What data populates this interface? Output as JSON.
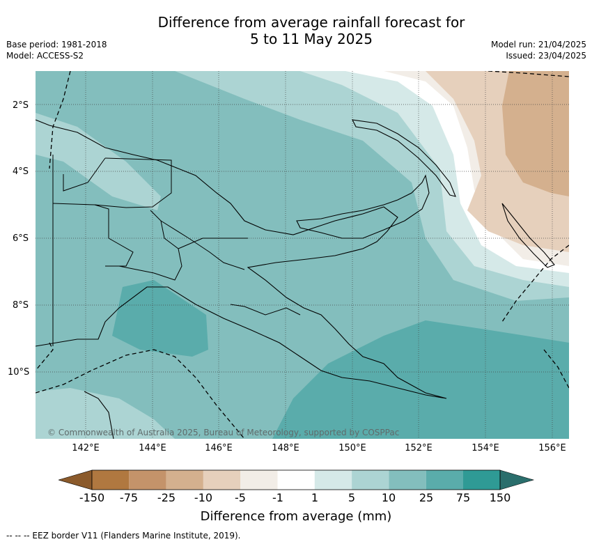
{
  "title": {
    "line1": "Difference from average rainfall forecast for",
    "line2": "5 to 11 May 2025"
  },
  "meta": {
    "base_period": "Base period: 1981-2018",
    "model": "Model: ACCESS-S2",
    "model_run": "Model run: 21/04/2025",
    "issued": "Issued: 23/04/2025"
  },
  "map": {
    "lat_labels": [
      "2°S",
      "4°S",
      "6°S",
      "8°S",
      "10°S"
    ],
    "lon_labels": [
      "142°E",
      "144°E",
      "146°E",
      "148°E",
      "150°E",
      "152°E",
      "154°E",
      "156°E"
    ],
    "copyright": "© Commonwealth of Australia 2025, Bureau of Meteorology, supported by COSPPac",
    "colors": {
      "land_outline": "#000000",
      "grid": "#444444"
    }
  },
  "legend": {
    "title": "Difference from average (mm)",
    "tick_labels": [
      "-150",
      "-75",
      "-25",
      "-10",
      "-5",
      "-1",
      "1",
      "5",
      "10",
      "25",
      "75",
      "150"
    ],
    "colors": [
      "#8b5a2b",
      "#b07840",
      "#c4936a",
      "#d4b08e",
      "#e6d0bc",
      "#f2ede7",
      "#ffffff",
      "#d5e9e8",
      "#acd4d3",
      "#83bebd",
      "#5aacab",
      "#2f9a95",
      "#2a6e6c"
    ]
  },
  "eez_note": "-- -- -- EEZ border V11 (Flanders Marine Institute, 2019)."
}
